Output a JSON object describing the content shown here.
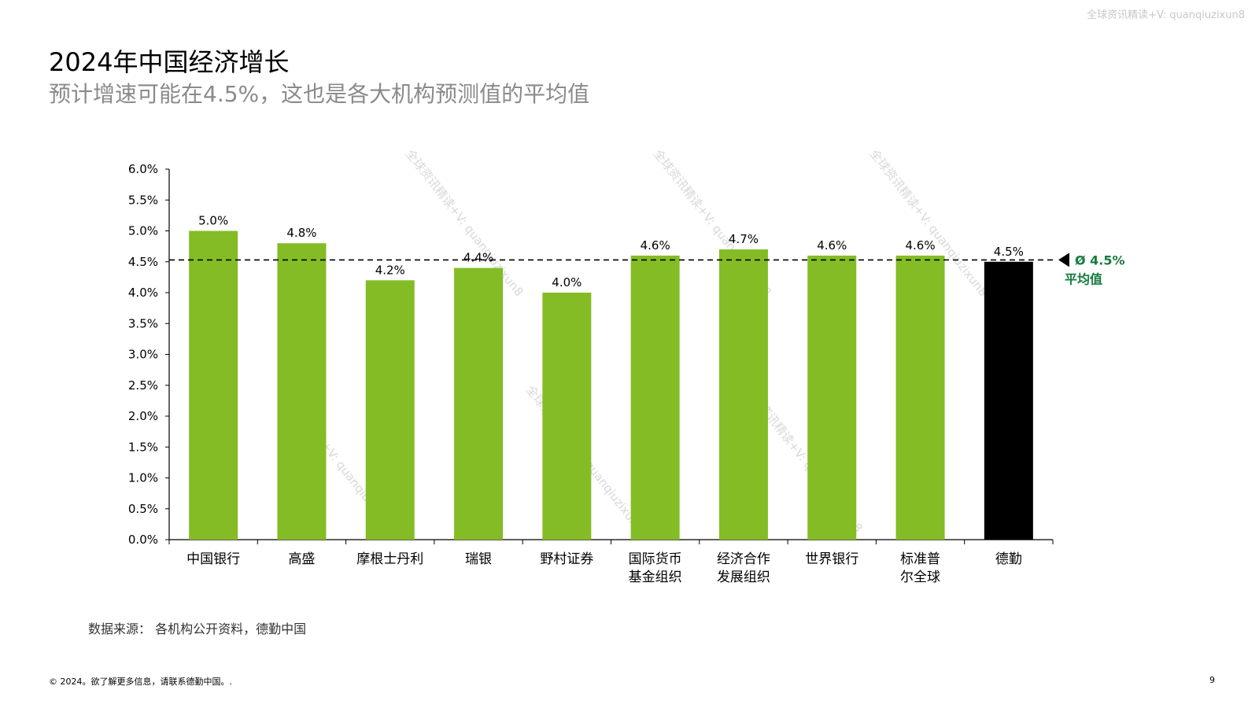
{
  "watermark": "全球资讯精读+V: quanqiuzixun8",
  "title": "2024年中国经济增长",
  "subtitle": "预计增速可能在4.5%，这也是各大机构预测值的平均值",
  "colors": {
    "bar_default": "#84bc25",
    "bar_highlight": "#000000",
    "average_label": "#167a3e",
    "subtitle": "#8a8a8a"
  },
  "chart_data": {
    "type": "bar",
    "categories": [
      [
        "中国银行"
      ],
      [
        "高盛"
      ],
      [
        "摩根士丹利"
      ],
      [
        "瑞银"
      ],
      [
        "野村证券"
      ],
      [
        "国际货币",
        "基金组织"
      ],
      [
        "经济合作",
        "发展组织"
      ],
      [
        "世界银行"
      ],
      [
        "标准普",
        "尔全球"
      ],
      [
        "德勤"
      ]
    ],
    "values": [
      5.0,
      4.8,
      4.2,
      4.4,
      4.0,
      4.6,
      4.7,
      4.6,
      4.6,
      4.5
    ],
    "value_labels": [
      "5.0%",
      "4.8%",
      "4.2%",
      "4.4%",
      "4.0%",
      "4.6%",
      "4.7%",
      "4.6%",
      "4.6%",
      "4.5%"
    ],
    "highlight_index": 9,
    "y_ticks": [
      "0.0%",
      "0.5%",
      "1.0%",
      "1.5%",
      "2.0%",
      "2.5%",
      "3.0%",
      "3.5%",
      "4.0%",
      "4.5%",
      "5.0%",
      "5.5%",
      "6.0%"
    ],
    "ylim": [
      0,
      6
    ],
    "average": 4.53,
    "average_label": "Ø 4.5%",
    "average_sublabel": "平均值",
    "grid": false,
    "legend": "none"
  },
  "source": "数据来源： 各机构公开资料，德勤中国",
  "footer": "© 2024。欲了解更多信息，请联系德勤中国。.",
  "page_number": "9"
}
